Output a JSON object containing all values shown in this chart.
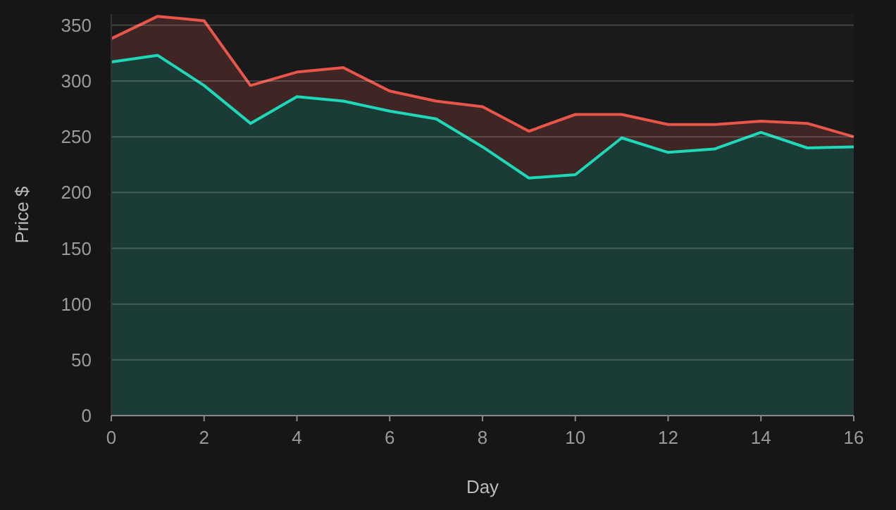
{
  "chart_data": {
    "type": "area",
    "xlabel": "Day",
    "ylabel": "Price $",
    "x": [
      0,
      1,
      2,
      3,
      4,
      5,
      6,
      7,
      8,
      9,
      10,
      11,
      12,
      13,
      14,
      15,
      16
    ],
    "series": [
      {
        "color": "#e8554a",
        "values": [
          338,
          358,
          354,
          296,
          308,
          312,
          291,
          282,
          277,
          255,
          270,
          270,
          261,
          261,
          264,
          262,
          250
        ]
      },
      {
        "color": "#1ed8b8",
        "values": [
          317,
          323,
          296,
          262,
          286,
          282,
          273,
          266,
          241,
          213,
          216,
          249,
          236,
          239,
          254,
          240,
          241
        ]
      }
    ],
    "xlim": [
      0,
      16
    ],
    "xticks": [
      0,
      2,
      4,
      6,
      8,
      10,
      12,
      14,
      16
    ],
    "ylim": [
      0,
      360
    ],
    "yticks": [
      0,
      50,
      100,
      150,
      200,
      250,
      300,
      350
    ],
    "grid": "y"
  }
}
